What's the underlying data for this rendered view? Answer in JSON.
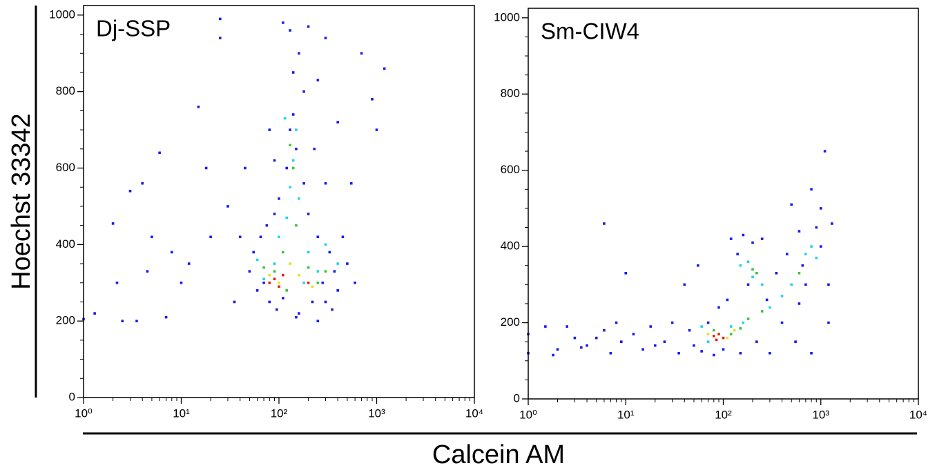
{
  "y_label": "Hoechst 33342",
  "x_label": "Calcein AM",
  "chart_data": [
    {
      "type": "scatter",
      "title": "Dj-SSP",
      "xscale": "log",
      "xlim": [
        1,
        10000
      ],
      "ylim": [
        0,
        1025
      ],
      "xticks": [
        {
          "value": 1,
          "label": "10⁰"
        },
        {
          "value": 10,
          "label": "10¹"
        },
        {
          "value": 100,
          "label": "10²"
        },
        {
          "value": 1000,
          "label": "10³"
        },
        {
          "value": 10000,
          "label": "10⁴"
        }
      ],
      "yticks": [
        0,
        200,
        400,
        600,
        800,
        1000
      ],
      "series": [
        {
          "color": "#1a1af0",
          "x": [
            1,
            1.3,
            2,
            2.2,
            2.5,
            3,
            3.5,
            4,
            4.5,
            5,
            6,
            7,
            8,
            10,
            12,
            15,
            18,
            20,
            25,
            25,
            30,
            35,
            40,
            45,
            50,
            55,
            60,
            65,
            70,
            75,
            80,
            90,
            95,
            100,
            110,
            120,
            130,
            140,
            150,
            160,
            180,
            200,
            220,
            250,
            280,
            300,
            330,
            370,
            400,
            450,
            500,
            550,
            600,
            700,
            900,
            1000,
            1200,
            110,
            130,
            160,
            200,
            250,
            300,
            180,
            140,
            230,
            90,
            80,
            400,
            300,
            150,
            250,
            350
          ],
          "values": [
            205,
            220,
            455,
            300,
            200,
            540,
            200,
            560,
            330,
            420,
            640,
            210,
            380,
            300,
            350,
            760,
            600,
            420,
            990,
            940,
            500,
            250,
            420,
            600,
            330,
            380,
            280,
            420,
            300,
            450,
            250,
            480,
            230,
            520,
            260,
            600,
            700,
            740,
            650,
            220,
            560,
            480,
            250,
            420,
            300,
            560,
            380,
            330,
            280,
            420,
            350,
            560,
            300,
            900,
            780,
            700,
            860,
            980,
            960,
            900,
            970,
            830,
            940,
            800,
            850,
            650,
            620,
            700,
            720,
            250,
            210,
            200,
            230
          ]
        },
        {
          "color": "#22d4e4",
          "x": [
            100,
            120,
            130,
            140,
            150,
            90,
            200,
            250,
            300,
            60,
            180,
            70,
            400,
            115,
            160
          ],
          "values": [
            420,
            470,
            550,
            620,
            700,
            350,
            380,
            330,
            400,
            360,
            300,
            310,
            350,
            730,
            520
          ]
        },
        {
          "color": "#3cc43c",
          "x": [
            90,
            110,
            140,
            150,
            200,
            250,
            120,
            70,
            300,
            130
          ],
          "values": [
            330,
            380,
            600,
            450,
            340,
            300,
            280,
            340,
            330,
            660
          ]
        },
        {
          "color": "#e6e020",
          "x": [
            100,
            160,
            220,
            80,
            130
          ],
          "values": [
            300,
            320,
            290,
            320,
            350
          ]
        },
        {
          "color": "#e82010",
          "x": [
            90,
            100,
            110,
            200,
            80
          ],
          "values": [
            310,
            290,
            320,
            300,
            300
          ]
        }
      ]
    },
    {
      "type": "scatter",
      "title": "Sm-CIW4",
      "xscale": "log",
      "xlim": [
        1,
        10000
      ],
      "ylim": [
        0,
        1025
      ],
      "xticks": [
        {
          "value": 1,
          "label": "10⁰"
        },
        {
          "value": 10,
          "label": "10¹"
        },
        {
          "value": 100,
          "label": "10²"
        },
        {
          "value": 1000,
          "label": "10³"
        },
        {
          "value": 10000,
          "label": "10⁴"
        }
      ],
      "yticks": [
        0,
        200,
        400,
        600,
        800,
        1000
      ],
      "series": [
        {
          "color": "#1a1af0",
          "x": [
            1,
            1,
            1.5,
            1.8,
            2,
            2.5,
            3,
            3.5,
            4,
            5,
            6,
            6,
            7,
            8,
            9,
            10,
            12,
            15,
            18,
            20,
            25,
            30,
            35,
            40,
            45,
            50,
            55,
            60,
            70,
            80,
            90,
            100,
            110,
            120,
            140,
            150,
            160,
            180,
            200,
            220,
            250,
            280,
            300,
            350,
            400,
            450,
            500,
            550,
            600,
            650,
            700,
            800,
            900,
            1000,
            1100,
            1000,
            1200,
            1300,
            800,
            600,
            1200
          ],
          "values": [
            170,
            120,
            190,
            115,
            130,
            190,
            160,
            135,
            140,
            160,
            460,
            180,
            120,
            200,
            150,
            330,
            170,
            130,
            190,
            140,
            150,
            200,
            120,
            300,
            180,
            140,
            350,
            125,
            200,
            115,
            240,
            130,
            260,
            420,
            380,
            120,
            430,
            300,
            410,
            150,
            420,
            260,
            120,
            330,
            200,
            380,
            510,
            150,
            440,
            350,
            300,
            550,
            450,
            500,
            650,
            400,
            300,
            460,
            120,
            250,
            200
          ]
        },
        {
          "color": "#22d4e4",
          "x": [
            60,
            70,
            150,
            180,
            200,
            250,
            300,
            400,
            500,
            700,
            800,
            900,
            120,
            160
          ],
          "values": [
            190,
            150,
            350,
            360,
            320,
            300,
            240,
            270,
            300,
            380,
            400,
            370,
            190,
            200
          ]
        },
        {
          "color": "#3cc43c",
          "x": [
            80,
            120,
            200,
            220,
            180,
            250,
            600,
            150
          ],
          "values": [
            180,
            170,
            340,
            330,
            210,
            230,
            330,
            185
          ]
        },
        {
          "color": "#e6e020",
          "x": [
            70,
            110,
            130
          ],
          "values": [
            170,
            160,
            180
          ]
        },
        {
          "color": "#e82010",
          "x": [
            80,
            90,
            100,
            85
          ],
          "values": [
            165,
            170,
            160,
            155
          ]
        }
      ]
    }
  ]
}
